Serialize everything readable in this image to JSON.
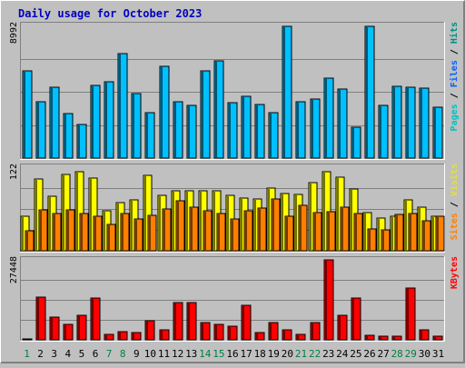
{
  "chart_data": {
    "type": "bar",
    "title": "Daily usage for October 2023",
    "categories": [
      "1",
      "2",
      "3",
      "4",
      "5",
      "6",
      "7",
      "8",
      "9",
      "10",
      "11",
      "12",
      "13",
      "14",
      "15",
      "16",
      "17",
      "18",
      "19",
      "20",
      "21",
      "22",
      "23",
      "24",
      "25",
      "26",
      "27",
      "28",
      "29",
      "30",
      "31"
    ],
    "weekend_days": [
      "1",
      "7",
      "8",
      "14",
      "15",
      "21",
      "22",
      "28",
      "29"
    ],
    "grid": true,
    "panels": [
      {
        "name": "hits",
        "max_label": "8992",
        "ylim": [
          0,
          8992
        ],
        "axis_label_parts": [
          {
            "text": "Pages",
            "color": "#00c0c0"
          },
          {
            "text": " / ",
            "color": "#000000"
          },
          {
            "text": "Files",
            "color": "#0060ff"
          },
          {
            "text": " / ",
            "color": "#000000"
          },
          {
            "text": "Hits",
            "color": "#009080"
          }
        ],
        "series": [
          {
            "name": "Hits",
            "color": "#00c0ff",
            "values": [
              5900,
              3800,
              4800,
              3000,
              2300,
              4950,
              5200,
              7100,
              4400,
              3100,
              6200,
              3800,
              3600,
              5900,
              6600,
              3750,
              4200,
              3650,
              3100,
              8900,
              3800,
              4000,
              5400,
              4700,
              2100,
              8900,
              3550,
              4850,
              4800,
              4750,
              3450
            ]
          }
        ]
      },
      {
        "name": "visits",
        "max_label": "122",
        "ylim": [
          0,
          122
        ],
        "axis_label_parts": [
          {
            "text": "Sites",
            "color": "#ff8000"
          },
          {
            "text": " / ",
            "color": "#000000"
          },
          {
            "text": "Visits",
            "color": "#e0e040"
          }
        ],
        "series": [
          {
            "name": "Visits",
            "color": "#ffff00",
            "values": [
              51,
              105,
              80,
              111,
              115,
              106,
              58,
              70,
              74,
              110,
              81,
              88,
              88,
              88,
              88,
              81,
              77,
              75,
              91,
              83,
              82,
              100,
              116,
              108,
              90,
              56,
              48,
              51,
              74,
              64,
              51
            ]
          },
          {
            "name": "Sites",
            "color": "#ff8000",
            "values": [
              29,
              60,
              54,
              60,
              54,
              51,
              38,
              55,
              46,
              52,
              61,
              73,
              63,
              59,
              54,
              47,
              59,
              62,
              75,
              51,
              66,
              56,
              57,
              64,
              54,
              32,
              31,
              53,
              54,
              44,
              50
            ]
          }
        ]
      },
      {
        "name": "kbytes",
        "max_label": "27448",
        "ylim": [
          0,
          27448
        ],
        "axis_label_parts": [
          {
            "text": "KBytes",
            "color": "#ff0000"
          }
        ],
        "series": [
          {
            "name": "KBytes",
            "color": "#ff0000",
            "values": [
              200,
              14800,
              7800,
              5300,
              8500,
              14200,
              2000,
              2700,
              2500,
              6600,
              3500,
              12800,
              12800,
              5900,
              5400,
              4700,
              12000,
              2500,
              6000,
              3500,
              1800,
              5800,
              27400,
              8300,
              14200,
              1500,
              1100,
              1200,
              17800,
              3500,
              1400
            ]
          }
        ]
      }
    ]
  }
}
